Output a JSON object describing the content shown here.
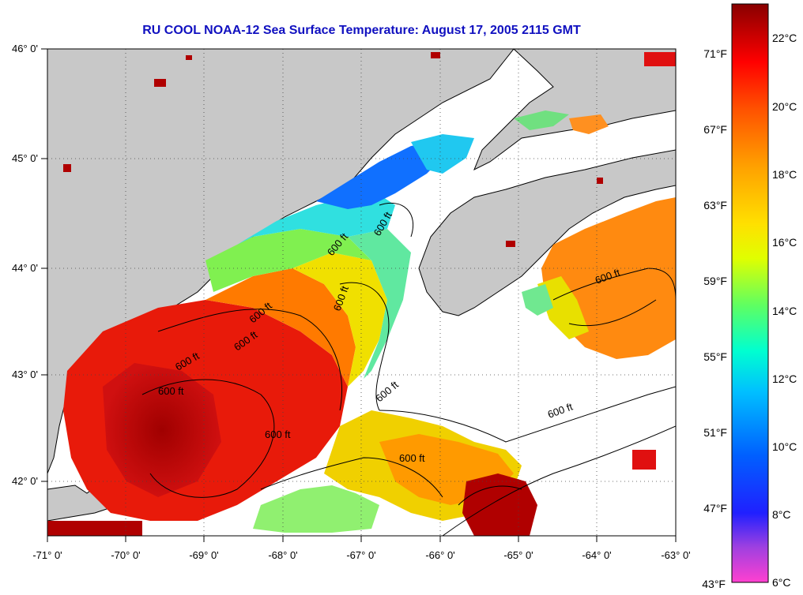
{
  "title": "RU COOL  NOAA-12  Sea Surface Temperature:  August 17, 2005 2115 GMT",
  "map": {
    "lon_range": [
      -71,
      -63
    ],
    "lat_range": [
      41.5,
      46
    ],
    "lon_ticks": [
      "-71° 0'",
      "-70° 0'",
      "-69° 0'",
      "-68° 0'",
      "-67° 0'",
      "-66° 0'",
      "-65° 0'",
      "-64° 0'",
      "-63° 0'"
    ],
    "lat_ticks": [
      "46° 0'",
      "45° 0'",
      "44° 0'",
      "43° 0'",
      "42° 0'"
    ],
    "contour_labels": [
      "600 ft",
      "600 ft",
      "600 ft",
      "600 ft",
      "600 ft",
      "600 ft",
      "600 ft",
      "600 ft",
      "600 ft",
      "600 ft",
      "600 ft",
      "600 ft"
    ],
    "colors": {
      "land": "#c8c8c8",
      "nodata": "#ffffff",
      "coast": "#000000"
    }
  },
  "colorbar": {
    "min_c": 6,
    "max_c": 23,
    "celsius_labels": [
      "22°C",
      "20°C",
      "18°C",
      "16°C",
      "14°C",
      "12°C",
      "10°C",
      "8°C",
      "6°C"
    ],
    "fahrenheit_labels": [
      "71°F",
      "67°F",
      "63°F",
      "59°F",
      "55°F",
      "51°F",
      "47°F",
      "43°F"
    ],
    "stops": [
      "#ff40d0",
      "#a040e0",
      "#0000ff",
      "#0080ff",
      "#00ffff",
      "#00ff80",
      "#c0ff00",
      "#ffff00",
      "#ffa000",
      "#ff6000",
      "#ff0000",
      "#c00000",
      "#800000"
    ]
  }
}
